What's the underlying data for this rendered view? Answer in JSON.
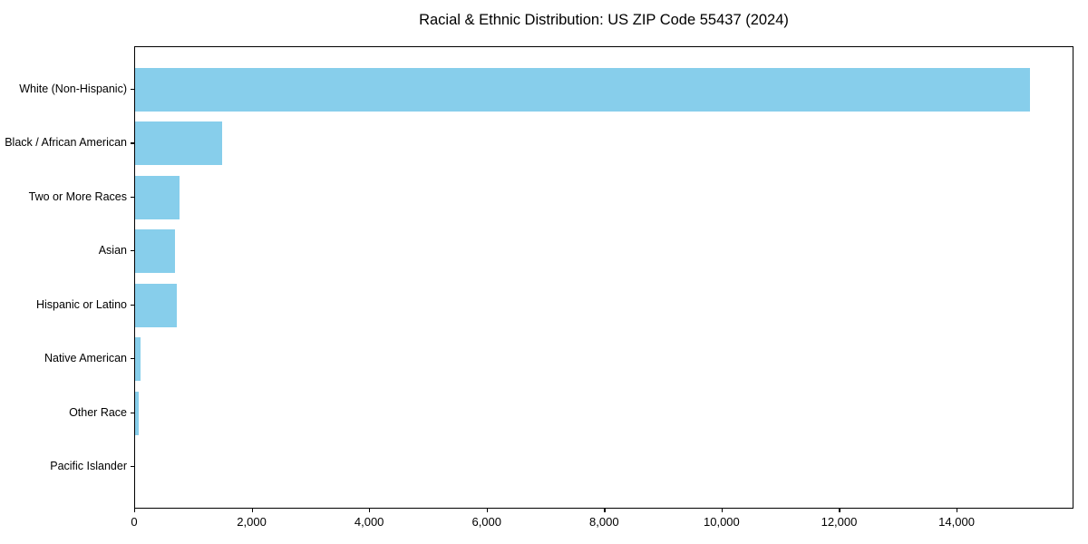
{
  "title": "Racial & Ethnic Distribution: US ZIP Code 55437 (2024)",
  "chart_data": {
    "type": "bar",
    "orientation": "horizontal",
    "title": "Racial & Ethnic Distribution: US ZIP Code 55437 (2024)",
    "categories": [
      "White (Non-Hispanic)",
      "Black / African American",
      "Two or More Races",
      "Asian",
      "Hispanic or Latino",
      "Native American",
      "Other Race",
      "Pacific Islander"
    ],
    "values": [
      15230,
      1480,
      760,
      685,
      715,
      90,
      60,
      0
    ],
    "xlabel": "",
    "ylabel": "",
    "xlim": [
      0,
      15990
    ],
    "xticks": [
      0,
      2000,
      4000,
      6000,
      8000,
      10000,
      12000,
      14000
    ],
    "bar_color": "#87CEEB",
    "grid": false,
    "legend_position": "none",
    "background_color": "#ffffff"
  }
}
